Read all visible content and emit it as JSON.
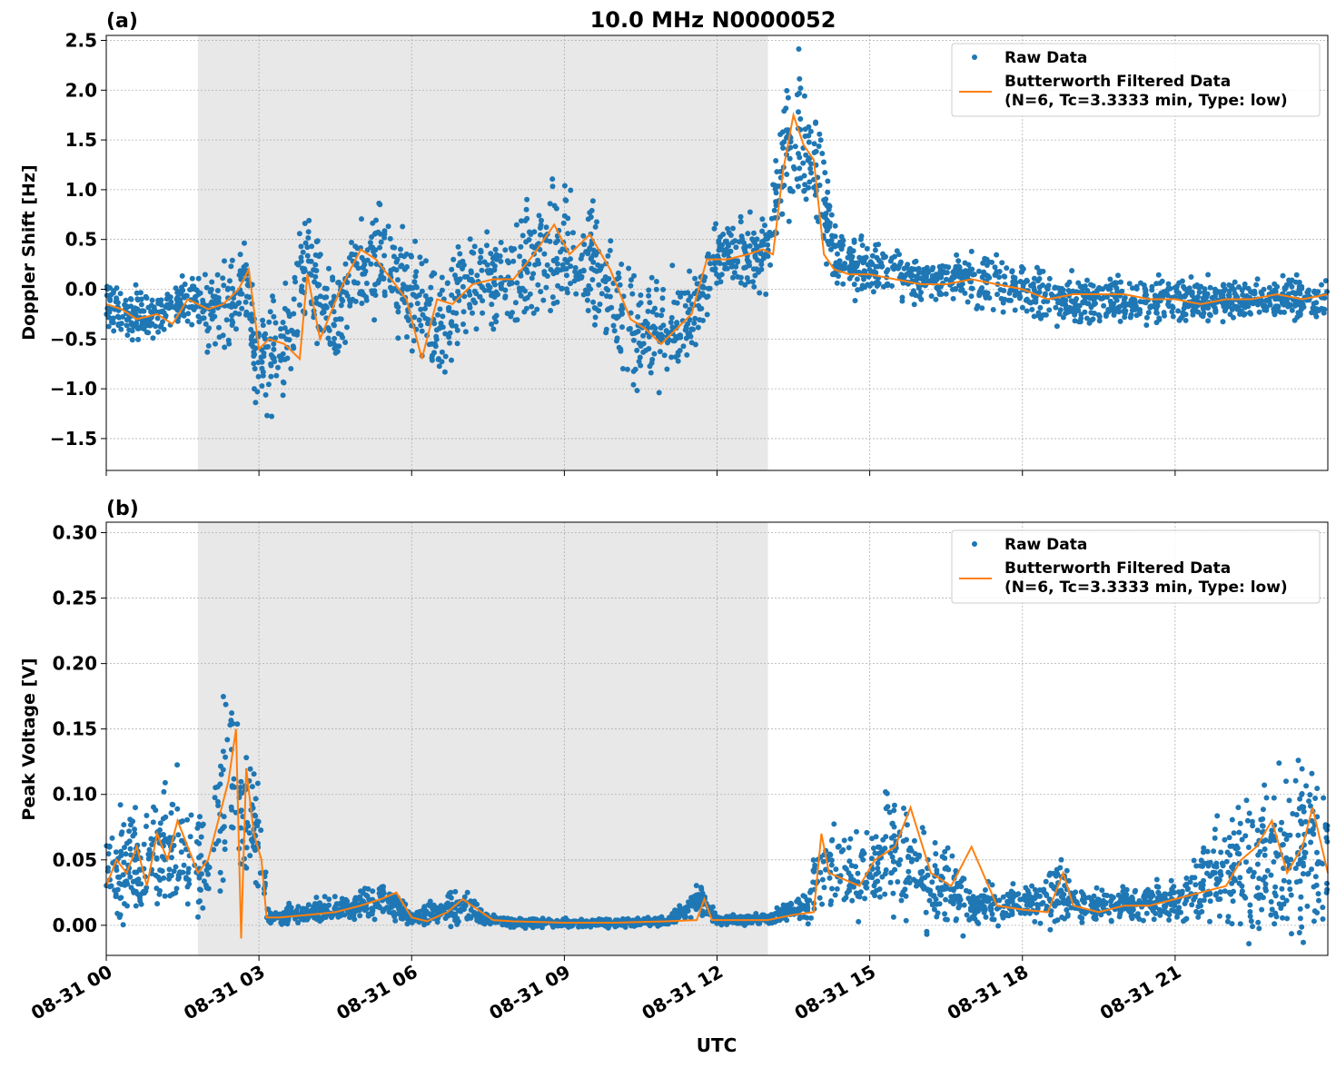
{
  "chart_data": [
    {
      "type": "scatter",
      "panel_label": "(a)",
      "title": "10.0 MHz N0000052",
      "xlabel": "",
      "ylabel": "Doppler Shift [Hz]",
      "ylim": [
        -1.82,
        2.55
      ],
      "xlim_hours": [
        0,
        24
      ],
      "x_tick_labels": [
        "08-31 00",
        "08-31 03",
        "08-31 06",
        "08-31 09",
        "08-31 12",
        "08-31 15",
        "08-31 18",
        "08-31 21"
      ],
      "x_tick_hours": [
        0,
        3,
        6,
        9,
        12,
        15,
        18,
        21
      ],
      "y_ticks": [
        -1.5,
        -1.0,
        -0.5,
        0.0,
        0.5,
        1.0,
        1.5,
        2.0,
        2.5
      ],
      "y_tick_labels": [
        "−1.5",
        "−1.0",
        "−0.5",
        "0.0",
        "0.5",
        "1.0",
        "1.5",
        "2.0",
        "2.5"
      ],
      "shaded_span_hours": [
        1.8,
        13.0
      ],
      "grid": true,
      "legend_position": "top-right",
      "series": [
        {
          "name": "Raw Data",
          "kind": "scatter",
          "color": "#1f77b4",
          "x": [
            0,
            0.5,
            1,
            1.5,
            2,
            2.5,
            2.7,
            3,
            3.5,
            3.9,
            4.5,
            5,
            5.5,
            6,
            6.5,
            7,
            7.5,
            8,
            8.5,
            9,
            9.5,
            10,
            10.5,
            11,
            11.5,
            12,
            12.5,
            13,
            13.3,
            13.6,
            14,
            14.3,
            15,
            16,
            17,
            18,
            19,
            20,
            21,
            22,
            23,
            24
          ],
          "y": [
            -0.15,
            -0.25,
            -0.3,
            -0.1,
            -0.25,
            -0.1,
            0.1,
            -0.7,
            -0.6,
            0.2,
            -0.3,
            0.2,
            0.35,
            -0.1,
            -0.5,
            0.05,
            0.1,
            0.05,
            0.3,
            0.4,
            0.3,
            -0.2,
            -0.45,
            -0.4,
            -0.3,
            0.3,
            0.35,
            0.4,
            1.3,
            1.6,
            1.2,
            0.3,
            0.2,
            0.1,
            0.1,
            0.0,
            -0.1,
            -0.1,
            -0.1,
            -0.1,
            -0.1,
            -0.1
          ],
          "spread": [
            0.25,
            0.25,
            0.25,
            0.25,
            0.35,
            0.4,
            0.4,
            0.55,
            0.6,
            0.5,
            0.5,
            0.5,
            0.5,
            0.55,
            0.55,
            0.45,
            0.45,
            0.5,
            0.6,
            0.65,
            0.6,
            0.55,
            0.55,
            0.5,
            0.4,
            0.3,
            0.3,
            0.35,
            0.6,
            0.7,
            0.6,
            0.3,
            0.25,
            0.2,
            0.25,
            0.25,
            0.25,
            0.2,
            0.2,
            0.2,
            0.2,
            0.2
          ]
        },
        {
          "name": "Butterworth Filtered Data\n(N=6, Tc=3.3333 min, Type: low)",
          "legend_lines": [
            "Butterworth Filtered Data",
            "(N=6, Tc=3.3333 min, Type: low)"
          ],
          "kind": "line",
          "color": "#ff7f0e",
          "x": [
            0,
            0.3,
            0.6,
            1.0,
            1.3,
            1.6,
            1.8,
            2.0,
            2.3,
            2.6,
            2.8,
            3.0,
            3.2,
            3.5,
            3.8,
            3.95,
            4.2,
            4.6,
            5.0,
            5.3,
            5.6,
            5.9,
            6.2,
            6.5,
            6.8,
            7.2,
            7.6,
            8.0,
            8.4,
            8.8,
            9.1,
            9.5,
            9.9,
            10.3,
            10.6,
            10.9,
            11.2,
            11.5,
            11.8,
            12.2,
            12.6,
            12.9,
            13.1,
            13.3,
            13.5,
            13.7,
            13.9,
            14.1,
            14.3,
            14.6,
            15.0,
            15.5,
            16.0,
            16.5,
            17.0,
            17.5,
            18.0,
            18.5,
            19.0,
            19.5,
            20.0,
            20.5,
            21.0,
            21.5,
            22.0,
            22.5,
            23.0,
            23.5,
            24.0
          ],
          "y": [
            -0.15,
            -0.2,
            -0.3,
            -0.25,
            -0.35,
            -0.1,
            -0.15,
            -0.2,
            -0.15,
            0.0,
            0.2,
            -0.6,
            -0.5,
            -0.55,
            -0.7,
            0.15,
            -0.5,
            0.0,
            0.4,
            0.3,
            0.1,
            -0.1,
            -0.7,
            -0.1,
            -0.15,
            0.05,
            0.1,
            0.1,
            0.35,
            0.65,
            0.35,
            0.55,
            0.2,
            -0.3,
            -0.4,
            -0.55,
            -0.4,
            -0.25,
            0.3,
            0.3,
            0.35,
            0.4,
            0.35,
            1.2,
            1.75,
            1.45,
            1.3,
            0.35,
            0.2,
            0.15,
            0.15,
            0.1,
            0.05,
            0.05,
            0.1,
            0.05,
            0.0,
            -0.1,
            -0.05,
            -0.05,
            -0.05,
            -0.1,
            -0.1,
            -0.15,
            -0.1,
            -0.1,
            -0.05,
            -0.1,
            -0.05
          ]
        }
      ]
    },
    {
      "type": "scatter",
      "panel_label": "(b)",
      "title": "",
      "xlabel": "UTC",
      "ylabel": "Peak Voltage [V]",
      "ylim": [
        -0.023,
        0.308
      ],
      "xlim_hours": [
        0,
        24
      ],
      "x_tick_labels": [
        "08-31 00",
        "08-31 03",
        "08-31 06",
        "08-31 09",
        "08-31 12",
        "08-31 15",
        "08-31 18",
        "08-31 21"
      ],
      "x_tick_hours": [
        0,
        3,
        6,
        9,
        12,
        15,
        18,
        21
      ],
      "y_ticks": [
        0.0,
        0.05,
        0.1,
        0.15,
        0.2,
        0.25,
        0.3
      ],
      "y_tick_labels": [
        "0.00",
        "0.05",
        "0.10",
        "0.15",
        "0.20",
        "0.25",
        "0.30"
      ],
      "shaded_span_hours": [
        1.8,
        13.0
      ],
      "grid": true,
      "legend_position": "top-right",
      "series": [
        {
          "name": "Raw Data",
          "kind": "scatter",
          "color": "#1f77b4",
          "x": [
            0,
            0.5,
            1,
            1.5,
            2,
            2.3,
            2.5,
            2.7,
            3.0,
            3.2,
            4,
            5,
            5.5,
            6,
            7,
            7.5,
            8,
            9,
            10,
            11,
            11.7,
            12,
            13,
            13.8,
            14.1,
            14.5,
            15,
            15.5,
            16,
            16.5,
            17,
            18,
            18.8,
            19,
            20,
            21,
            22,
            22.5,
            23,
            23.5,
            24
          ],
          "y": [
            0.04,
            0.05,
            0.05,
            0.06,
            0.04,
            0.1,
            0.13,
            0.08,
            0.06,
            0.005,
            0.01,
            0.015,
            0.02,
            0.005,
            0.015,
            0.005,
            0.002,
            0.002,
            0.002,
            0.003,
            0.02,
            0.004,
            0.005,
            0.015,
            0.05,
            0.04,
            0.04,
            0.06,
            0.04,
            0.03,
            0.015,
            0.015,
            0.03,
            0.015,
            0.015,
            0.02,
            0.04,
            0.05,
            0.05,
            0.06,
            0.05
          ],
          "spread": [
            0.03,
            0.04,
            0.04,
            0.05,
            0.04,
            0.06,
            0.08,
            0.05,
            0.05,
            0.005,
            0.008,
            0.01,
            0.015,
            0.004,
            0.015,
            0.004,
            0.003,
            0.003,
            0.003,
            0.003,
            0.01,
            0.003,
            0.004,
            0.01,
            0.04,
            0.03,
            0.03,
            0.05,
            0.04,
            0.03,
            0.015,
            0.012,
            0.03,
            0.012,
            0.012,
            0.015,
            0.04,
            0.06,
            0.06,
            0.07,
            0.05
          ]
        },
        {
          "name": "Butterworth Filtered Data\n(N=6, Tc=3.3333 min, Type: low)",
          "legend_lines": [
            "Butterworth Filtered Data",
            "(N=6, Tc=3.3333 min, Type: low)"
          ],
          "kind": "line",
          "color": "#ff7f0e",
          "x": [
            0,
            0.2,
            0.4,
            0.6,
            0.8,
            1.0,
            1.2,
            1.4,
            1.6,
            1.8,
            2.0,
            2.2,
            2.4,
            2.55,
            2.65,
            2.75,
            2.9,
            3.05,
            3.15,
            3.4,
            4.0,
            4.5,
            5.0,
            5.4,
            5.7,
            6.0,
            6.3,
            6.7,
            7.0,
            7.3,
            7.6,
            8.0,
            9.0,
            10.0,
            11.0,
            11.6,
            11.75,
            11.9,
            12.5,
            13.0,
            13.5,
            13.9,
            14.05,
            14.2,
            14.5,
            14.8,
            15.1,
            15.5,
            15.8,
            16.2,
            16.6,
            17.0,
            17.5,
            18.0,
            18.5,
            18.8,
            19.0,
            19.5,
            20.0,
            20.5,
            21.0,
            21.5,
            22.0,
            22.3,
            22.6,
            22.9,
            23.2,
            23.5,
            23.7,
            24.0
          ],
          "y": [
            0.03,
            0.05,
            0.04,
            0.06,
            0.03,
            0.07,
            0.05,
            0.08,
            0.06,
            0.04,
            0.05,
            0.08,
            0.11,
            0.15,
            -0.01,
            0.12,
            0.07,
            0.05,
            0.006,
            0.006,
            0.008,
            0.01,
            0.015,
            0.02,
            0.025,
            0.006,
            0.003,
            0.01,
            0.02,
            0.012,
            0.004,
            0.003,
            0.002,
            0.002,
            0.003,
            0.004,
            0.02,
            0.004,
            0.004,
            0.004,
            0.008,
            0.01,
            0.07,
            0.04,
            0.035,
            0.03,
            0.05,
            0.06,
            0.09,
            0.04,
            0.03,
            0.06,
            0.015,
            0.012,
            0.01,
            0.04,
            0.015,
            0.01,
            0.015,
            0.015,
            0.02,
            0.025,
            0.03,
            0.05,
            0.06,
            0.08,
            0.04,
            0.06,
            0.09,
            0.04
          ]
        }
      ]
    }
  ]
}
